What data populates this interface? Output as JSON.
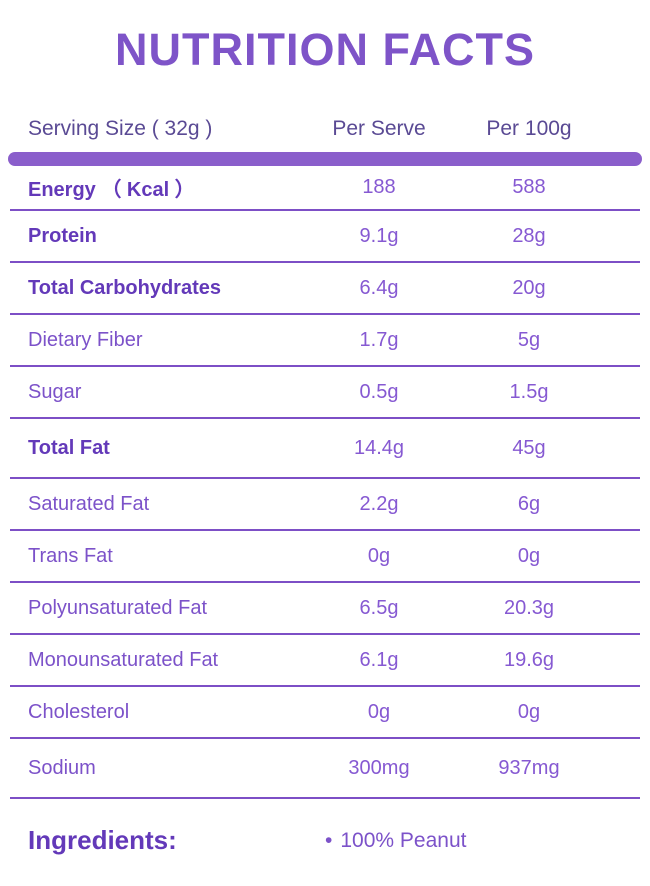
{
  "title": "NUTRITION FACTS",
  "colors": {
    "title_color": "#7e54c8",
    "header_color": "#5a4a94",
    "bold_label_color": "#6339b9",
    "label_color": "#7c52c9",
    "value_color": "#8659d2",
    "divider_color": "#7d4fc6",
    "bar_color": "#8a5ecb",
    "bg_color": "#ffffff"
  },
  "table": {
    "header": {
      "col1": "Serving Size ( 32g )",
      "col2": "Per Serve",
      "col3": "Per 100g"
    },
    "rows": [
      {
        "label": "Energy （ Kcal ）",
        "per_serve": "188",
        "per_100g": "588",
        "bold": true
      },
      {
        "label": "Protein",
        "per_serve": "9.1g",
        "per_100g": "28g",
        "bold": true
      },
      {
        "label": "Total Carbohydrates",
        "per_serve": "6.4g",
        "per_100g": "20g",
        "bold": true
      },
      {
        "label": "Dietary Fiber",
        "per_serve": "1.7g",
        "per_100g": "5g",
        "bold": false
      },
      {
        "label": "Sugar",
        "per_serve": "0.5g",
        "per_100g": "1.5g",
        "bold": false
      },
      {
        "label": "Total Fat",
        "per_serve": "14.4g",
        "per_100g": "45g",
        "bold": true
      },
      {
        "label": "Saturated Fat",
        "per_serve": "2.2g",
        "per_100g": "6g",
        "bold": false
      },
      {
        "label": "Trans Fat",
        "per_serve": "0g",
        "per_100g": "0g",
        "bold": false
      },
      {
        "label": "Polyunsaturated Fat",
        "per_serve": "6.5g",
        "per_100g": "20.3g",
        "bold": false
      },
      {
        "label": "Monounsaturated Fat",
        "per_serve": "6.1g",
        "per_100g": "19.6g",
        "bold": false
      },
      {
        "label": "Cholesterol",
        "per_serve": "0g",
        "per_100g": "0g",
        "bold": false
      },
      {
        "label": "Sodium",
        "per_serve": "300mg",
        "per_100g": "937mg",
        "bold": false
      }
    ]
  },
  "ingredients": {
    "label": "Ingredients:",
    "bullet": "•",
    "item": "100% Peanut"
  }
}
